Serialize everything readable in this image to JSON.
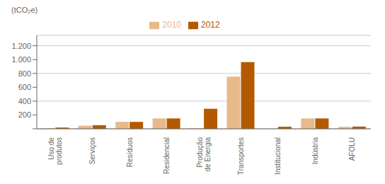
{
  "chart_data": {
    "type": "bar",
    "ylabel": "(tCO₂e)",
    "categories": [
      "Uso de\nprodutos",
      "Serviços",
      "Resíduos",
      "Residencial",
      "Produção\nde Energia",
      "Transportes",
      "Institucional",
      "Indústria",
      "AFOLU"
    ],
    "series": [
      {
        "name": "2010",
        "color": "#E8B98A",
        "values": [
          10,
          45,
          100,
          150,
          10,
          755,
          0,
          150,
          28
        ]
      },
      {
        "name": "2012",
        "color": "#B35A00",
        "values": [
          18,
          52,
          100,
          150,
          290,
          965,
          30,
          150,
          32
        ]
      }
    ],
    "ylim": [
      0,
      1350
    ],
    "yticks": [
      {
        "value": 0,
        "label": ""
      },
      200,
      400,
      600,
      800,
      {
        "value": 1000,
        "label": "1.000"
      },
      {
        "value": 1200,
        "label": "1.200"
      }
    ],
    "grid": true,
    "legend": "top"
  }
}
